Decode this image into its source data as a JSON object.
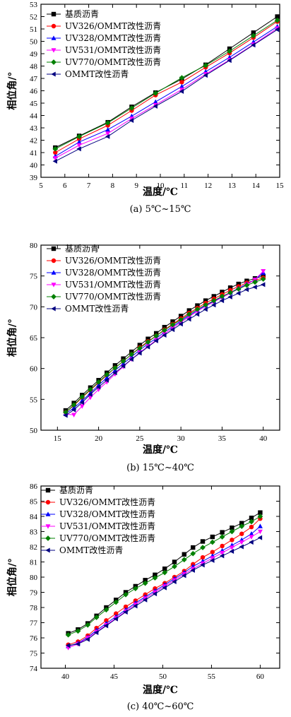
{
  "legend_labels": [
    "基质沥青",
    "UV326/OMMT改性沥青",
    "UV328/OMMT改性沥青",
    "UV531/OMMT改性沥青",
    "UV770/OMMT改性沥青",
    "OMMT改性沥青"
  ],
  "series_colors": [
    "#000000",
    "#ff0000",
    "#0000ff",
    "#ff00ff",
    "#008000",
    "#000080"
  ],
  "series_markers": [
    "square",
    "circle",
    "triangle-up",
    "triangle-down",
    "diamond",
    "triangle-left"
  ],
  "chart_data": [
    {
      "type": "line",
      "caption": "(a) 5℃~15℃",
      "xlabel": "温度/℃",
      "ylabel": "相位角/°",
      "xlim": [
        5,
        15
      ],
      "ylim": [
        39,
        53
      ],
      "xticks": [
        5,
        6,
        7,
        8,
        9,
        10,
        11,
        12,
        13,
        14,
        15
      ],
      "yticks": [
        39,
        40,
        41,
        42,
        43,
        44,
        45,
        46,
        47,
        48,
        49,
        50,
        51,
        52,
        53
      ],
      "x": [
        5.6,
        6.6,
        7.8,
        8.8,
        9.8,
        10.9,
        11.9,
        12.9,
        13.9,
        14.9
      ],
      "series": [
        {
          "name": "基质沥青",
          "values": [
            41.4,
            42.35,
            43.45,
            44.7,
            45.85,
            46.95,
            48.1,
            49.4,
            50.7,
            52.0
          ]
        },
        {
          "name": "UV326/OMMT改性沥青",
          "values": [
            41.0,
            42.1,
            43.2,
            44.4,
            45.65,
            46.7,
            47.9,
            49.05,
            50.3,
            51.6
          ]
        },
        {
          "name": "UV328/OMMT改性沥青",
          "values": [
            40.7,
            41.85,
            42.85,
            43.95,
            45.1,
            46.35,
            47.55,
            48.7,
            49.95,
            51.2
          ]
        },
        {
          "name": "UV531/OMMT改性沥青",
          "values": [
            40.55,
            41.6,
            42.55,
            43.75,
            44.85,
            46.1,
            47.35,
            48.5,
            49.75,
            51.05
          ]
        },
        {
          "name": "UV770/OMMT改性沥青",
          "values": [
            41.3,
            42.3,
            43.4,
            44.6,
            45.8,
            47.05,
            48.05,
            49.2,
            50.45,
            51.7
          ]
        },
        {
          "name": "OMMT改性沥青",
          "values": [
            40.3,
            41.3,
            42.3,
            43.6,
            44.75,
            45.95,
            47.25,
            48.45,
            49.7,
            50.95
          ]
        }
      ]
    },
    {
      "type": "line",
      "caption": "(b) 15℃~40℃",
      "xlabel": "温度/℃",
      "ylabel": "相位角/°",
      "xlim": [
        13,
        42
      ],
      "ylim": [
        50,
        80
      ],
      "xticks": [
        15,
        20,
        25,
        30,
        35,
        40
      ],
      "yticks": [
        50,
        55,
        60,
        65,
        70,
        75,
        80
      ],
      "x": [
        16,
        17,
        18,
        19,
        20,
        21,
        22,
        23,
        24,
        25,
        26,
        27,
        28,
        29,
        30,
        31,
        32,
        33,
        34,
        35,
        36,
        37,
        38,
        39,
        40
      ],
      "series": [
        {
          "name": "基质沥青",
          "values": [
            53.2,
            54.4,
            55.7,
            56.9,
            58.1,
            59.3,
            60.5,
            61.6,
            62.7,
            63.8,
            64.8,
            65.7,
            66.7,
            67.6,
            68.5,
            69.4,
            70.2,
            71.0,
            71.7,
            72.4,
            73.1,
            73.7,
            74.2,
            74.6,
            75.0
          ]
        },
        {
          "name": "UV326/OMMT改性沥青",
          "values": [
            52.9,
            54.0,
            55.3,
            56.5,
            57.7,
            58.9,
            60.1,
            61.2,
            62.3,
            63.4,
            64.4,
            65.3,
            66.3,
            67.2,
            68.1,
            69.0,
            69.8,
            70.6,
            71.3,
            72.0,
            72.7,
            73.3,
            73.9,
            74.3,
            74.7
          ]
        },
        {
          "name": "UV328/OMMT改性沥青",
          "values": [
            52.7,
            53.6,
            54.8,
            56.0,
            57.3,
            58.5,
            59.7,
            60.8,
            61.9,
            63.0,
            64.0,
            64.9,
            65.9,
            66.8,
            67.7,
            68.6,
            69.4,
            70.2,
            70.9,
            71.6,
            72.3,
            73.0,
            73.7,
            74.4,
            75.5
          ]
        },
        {
          "name": "UV531/OMMT改性沥青",
          "values": [
            52.6,
            52.5,
            53.9,
            55.3,
            56.6,
            57.8,
            59.1,
            60.3,
            61.5,
            62.6,
            63.6,
            64.6,
            65.6,
            66.6,
            67.5,
            68.4,
            69.3,
            70.1,
            70.8,
            71.5,
            72.2,
            72.9,
            73.6,
            74.4,
            75.8
          ]
        },
        {
          "name": "UV770/OMMT改性沥青",
          "values": [
            52.9,
            54.1,
            55.4,
            56.6,
            57.8,
            59.0,
            60.1,
            61.2,
            62.3,
            63.3,
            64.3,
            65.3,
            66.2,
            67.1,
            67.9,
            68.8,
            69.6,
            70.3,
            71.0,
            71.7,
            72.3,
            72.9,
            73.5,
            74.0,
            74.5
          ]
        },
        {
          "name": "OMMT改性沥青",
          "values": [
            52.4,
            53.3,
            54.5,
            55.8,
            57.0,
            58.1,
            59.3,
            60.4,
            61.5,
            62.5,
            63.5,
            64.5,
            65.4,
            66.3,
            67.2,
            68.0,
            68.8,
            69.6,
            70.3,
            71.0,
            71.6,
            72.2,
            72.8,
            73.2,
            73.6
          ]
        }
      ]
    },
    {
      "type": "line",
      "caption": "(c) 40℃~60℃",
      "xlabel": "温度/℃",
      "ylabel": "相位角/°",
      "xlim": [
        37.5,
        62
      ],
      "ylim": [
        74,
        86
      ],
      "xticks": [
        40,
        45,
        50,
        55,
        60
      ],
      "yticks": [
        74,
        75,
        76,
        77,
        78,
        79,
        80,
        81,
        82,
        83,
        84,
        85,
        86
      ],
      "x": [
        40.3,
        41.3,
        42.3,
        43.2,
        44.2,
        45.2,
        46.2,
        47.2,
        48.2,
        49.2,
        50.2,
        51.2,
        52.2,
        53.1,
        54.1,
        55.1,
        56.1,
        57.1,
        58.1,
        59.1,
        60.0
      ],
      "series": [
        {
          "name": "基质沥青",
          "values": [
            76.3,
            76.55,
            76.95,
            77.45,
            78.0,
            78.5,
            79.0,
            79.4,
            79.8,
            80.15,
            80.55,
            81.0,
            81.5,
            81.95,
            82.35,
            82.65,
            82.95,
            83.25,
            83.55,
            83.9,
            84.25
          ]
        },
        {
          "name": "UV326/OMMT改性沥青",
          "values": [
            75.55,
            75.75,
            76.15,
            76.65,
            77.15,
            77.6,
            78.05,
            78.45,
            78.85,
            79.25,
            79.6,
            80.0,
            80.4,
            80.85,
            81.3,
            81.65,
            82.05,
            82.45,
            82.85,
            83.3,
            83.85
          ]
        },
        {
          "name": "UV328/OMMT改性沥青",
          "values": [
            75.45,
            75.65,
            76.05,
            76.5,
            76.95,
            77.4,
            77.85,
            78.3,
            78.7,
            79.1,
            79.5,
            79.9,
            80.3,
            80.7,
            81.05,
            81.4,
            81.75,
            82.1,
            82.45,
            82.85,
            83.35
          ]
        },
        {
          "name": "UV531/OMMT改性沥青",
          "values": [
            75.35,
            75.6,
            76.0,
            76.4,
            76.85,
            77.3,
            77.75,
            78.2,
            78.6,
            79.0,
            79.4,
            79.8,
            80.2,
            80.55,
            80.9,
            81.25,
            81.6,
            81.95,
            82.3,
            82.65,
            83.0
          ]
        },
        {
          "name": "UV770/OMMT改性沥青",
          "values": [
            76.2,
            76.45,
            76.85,
            77.35,
            77.85,
            78.35,
            78.85,
            79.25,
            79.6,
            79.95,
            80.3,
            80.7,
            81.15,
            81.55,
            81.95,
            82.3,
            82.65,
            83.0,
            83.35,
            83.65,
            84.0
          ]
        },
        {
          "name": "OMMT改性沥青",
          "values": [
            75.5,
            75.6,
            75.9,
            76.35,
            76.8,
            77.25,
            77.7,
            78.1,
            78.5,
            78.9,
            79.3,
            79.7,
            80.1,
            80.45,
            80.8,
            81.1,
            81.4,
            81.7,
            82.0,
            82.3,
            82.6
          ]
        }
      ]
    }
  ]
}
